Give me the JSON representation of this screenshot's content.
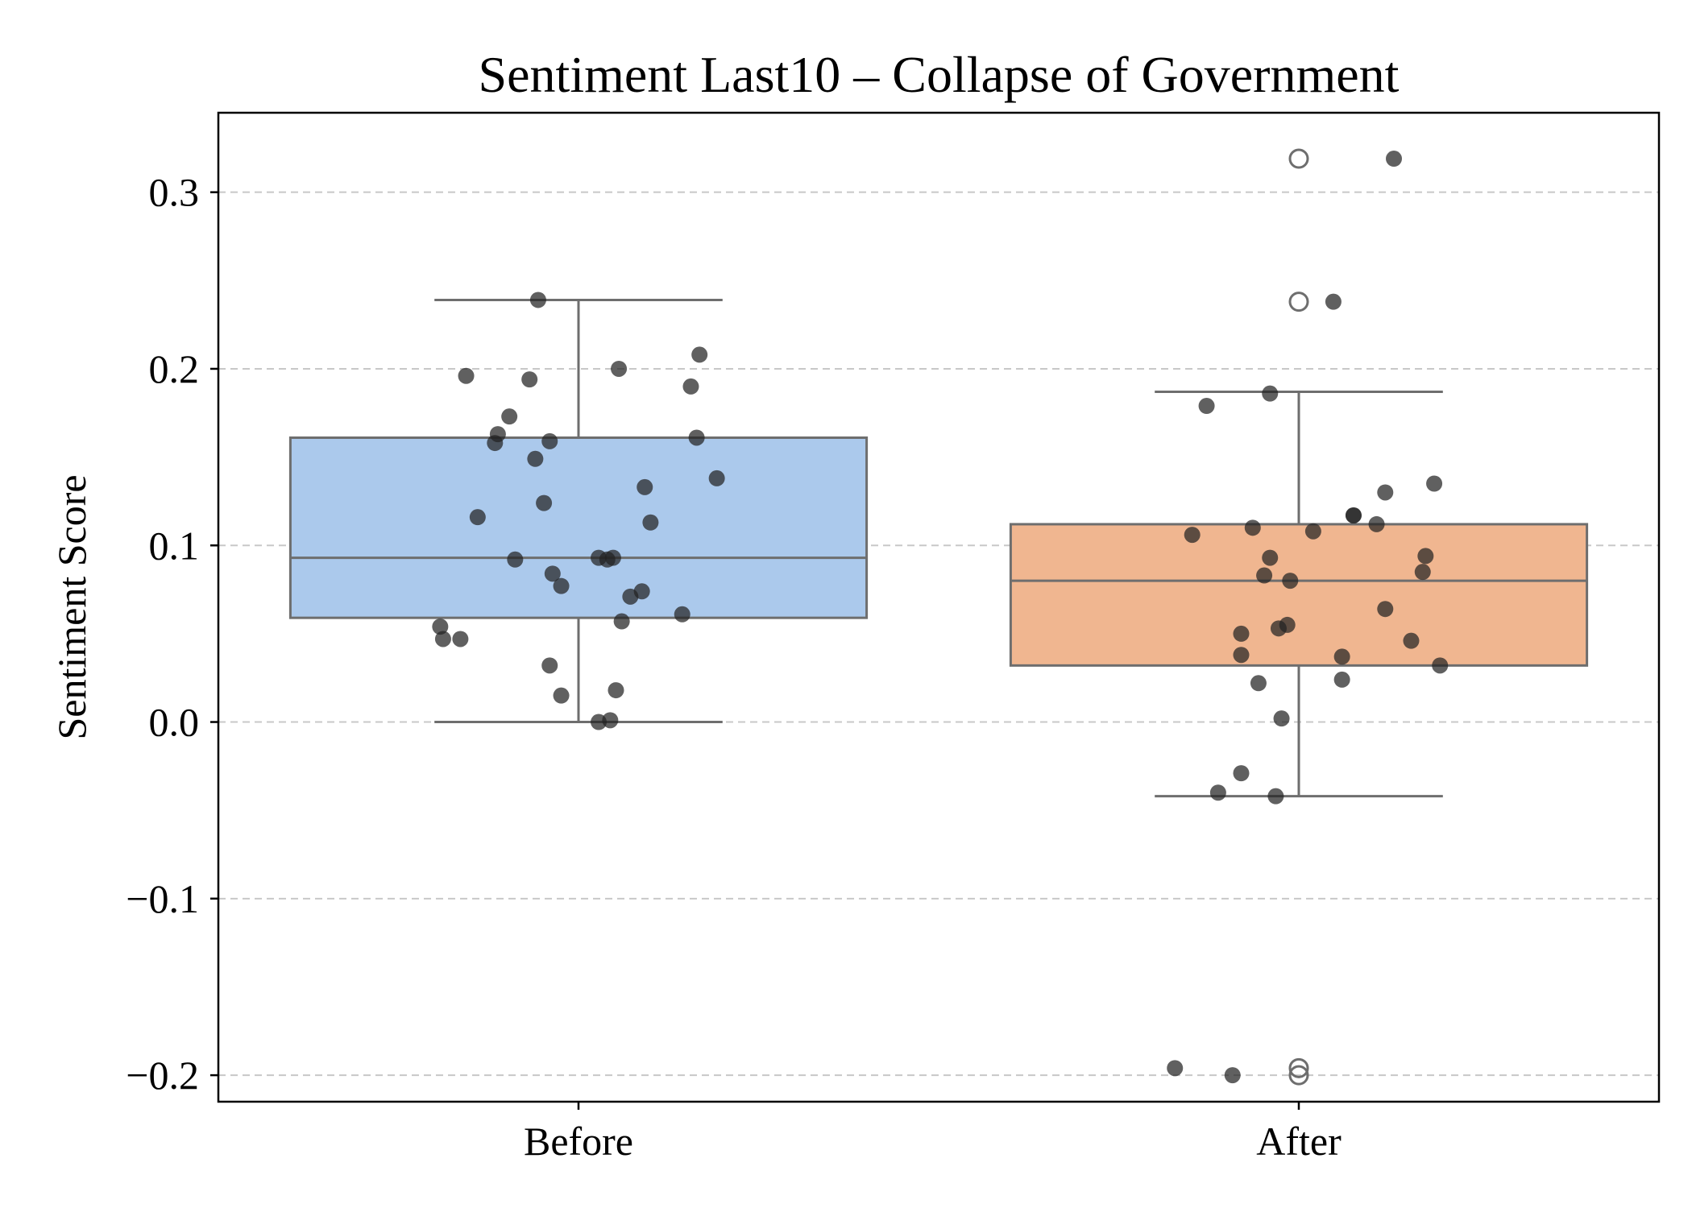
{
  "chart_data": {
    "type": "box",
    "title": "Sentiment Last10 – Collapse of Government",
    "xlabel": "",
    "ylabel": "Sentiment Score",
    "ylim": [
      -0.215,
      0.345
    ],
    "yticks": [
      -0.2,
      -0.1,
      0.0,
      0.1,
      0.2,
      0.3
    ],
    "ytick_labels": [
      "−0.2",
      "−0.1",
      "0.0",
      "0.1",
      "0.2",
      "0.3"
    ],
    "grid": "y-dashed",
    "categories": [
      "Before",
      "After"
    ],
    "boxes": [
      {
        "name": "Before",
        "color": "#abc9ec",
        "q1": 0.059,
        "median": 0.093,
        "q3": 0.161,
        "whisker_low": 0.0,
        "whisker_high": 0.239,
        "outliers": []
      },
      {
        "name": "After",
        "color": "#f0b690",
        "q1": 0.032,
        "median": 0.08,
        "q3": 0.112,
        "whisker_low": -0.042,
        "whisker_high": 0.187,
        "outliers": [
          0.319,
          0.238,
          -0.196,
          -0.2
        ]
      }
    ],
    "points": [
      {
        "category": "Before",
        "values": [
          0.239,
          0.196,
          0.194,
          0.2,
          0.208,
          0.173,
          0.19,
          0.163,
          0.158,
          0.159,
          0.161,
          0.149,
          0.138,
          0.116,
          0.124,
          0.133,
          0.113,
          0.092,
          0.093,
          0.092,
          0.093,
          0.084,
          0.077,
          0.071,
          0.074,
          0.061,
          0.057,
          0.054,
          0.047,
          0.047,
          0.032,
          0.015,
          0.018,
          0.0,
          0.001
        ],
        "jitter": [
          -0.14,
          -0.39,
          -0.17,
          0.14,
          0.42,
          -0.24,
          0.39,
          -0.28,
          -0.29,
          -0.1,
          0.41,
          -0.15,
          0.48,
          -0.35,
          -0.12,
          0.23,
          0.25,
          -0.22,
          0.07,
          0.1,
          0.12,
          -0.09,
          -0.06,
          0.18,
          0.22,
          0.36,
          0.15,
          -0.48,
          -0.47,
          -0.41,
          -0.1,
          -0.06,
          0.13,
          0.07,
          0.11
        ]
      },
      {
        "category": "After",
        "values": [
          0.319,
          0.238,
          0.186,
          0.179,
          0.135,
          0.13,
          0.117,
          0.117,
          0.112,
          0.11,
          0.108,
          0.106,
          0.094,
          0.093,
          0.085,
          0.083,
          0.08,
          0.064,
          0.055,
          0.053,
          0.05,
          0.046,
          0.038,
          0.037,
          0.032,
          0.024,
          0.022,
          0.002,
          -0.029,
          -0.04,
          -0.042,
          -0.196,
          -0.2
        ],
        "jitter": [
          0.33,
          0.12,
          -0.1,
          -0.32,
          0.47,
          0.3,
          0.19,
          0.19,
          0.27,
          -0.16,
          0.05,
          -0.37,
          0.44,
          -0.1,
          0.43,
          -0.12,
          -0.03,
          0.3,
          -0.04,
          -0.07,
          -0.2,
          0.39,
          -0.2,
          0.15,
          0.49,
          0.15,
          -0.14,
          -0.06,
          -0.2,
          -0.28,
          -0.08,
          -0.43,
          -0.23
        ]
      }
    ],
    "legend": "none"
  }
}
